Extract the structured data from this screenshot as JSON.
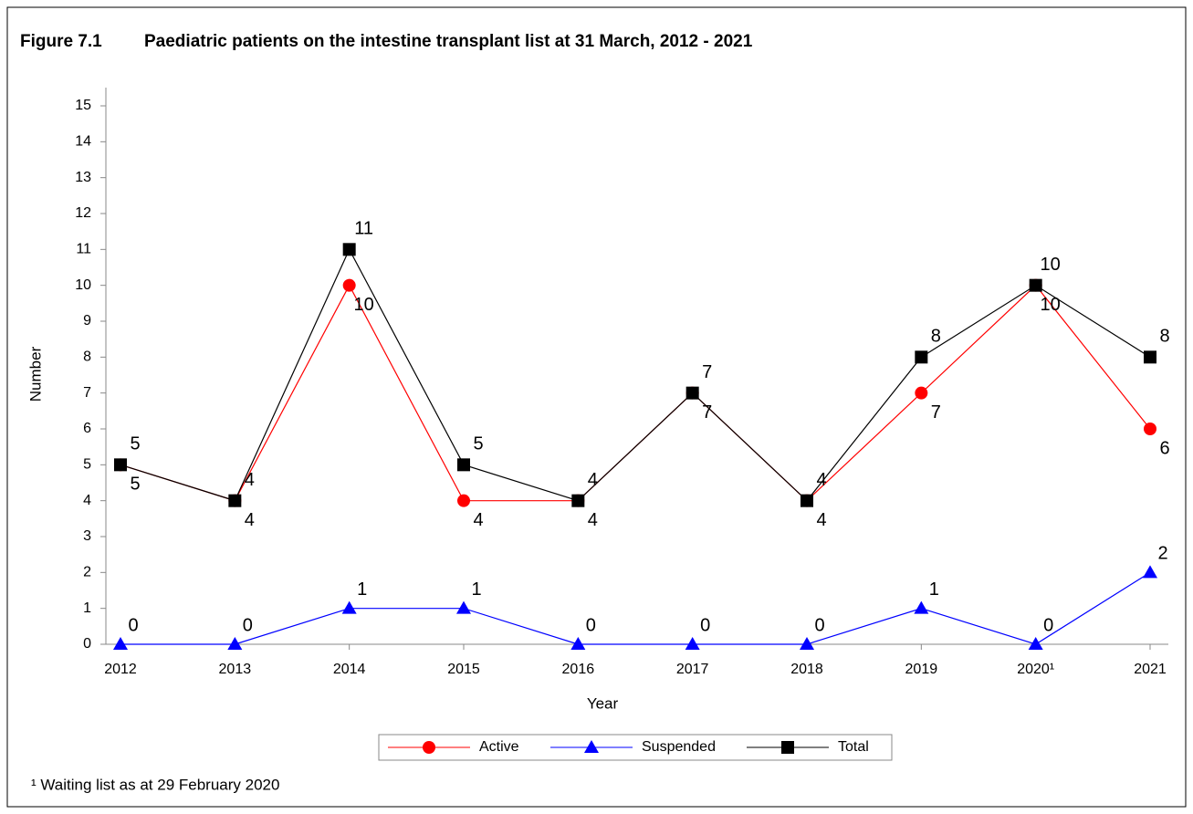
{
  "chart_data": {
    "type": "line",
    "title": "Figure 7.1",
    "subtitle": "Paediatric patients on the intestine transplant list at 31 March, 2012 - 2021",
    "x_label": "Year",
    "y_label": "Number",
    "footnote": "¹ Waiting list as at 29 February 2020",
    "categories": [
      "2012",
      "2013",
      "2014",
      "2015",
      "2016",
      "2017",
      "2018",
      "2019",
      "2020¹",
      "2021"
    ],
    "ylim": [
      0,
      15
    ],
    "yticks": [
      0,
      1,
      2,
      3,
      4,
      5,
      6,
      7,
      8,
      9,
      10,
      11,
      12,
      13,
      14,
      15
    ],
    "series": [
      {
        "name": "Active",
        "color": "#ff0000",
        "marker": "circle",
        "values": [
          5,
          4,
          10,
          4,
          4,
          7,
          4,
          7,
          10,
          6
        ]
      },
      {
        "name": "Suspended",
        "color": "#0000ff",
        "marker": "triangle",
        "values": [
          0,
          0,
          1,
          1,
          0,
          0,
          0,
          1,
          0,
          2
        ]
      },
      {
        "name": "Total",
        "color": "#000000",
        "marker": "square",
        "values": [
          5,
          4,
          11,
          5,
          4,
          7,
          4,
          8,
          10,
          8
        ]
      }
    ]
  }
}
